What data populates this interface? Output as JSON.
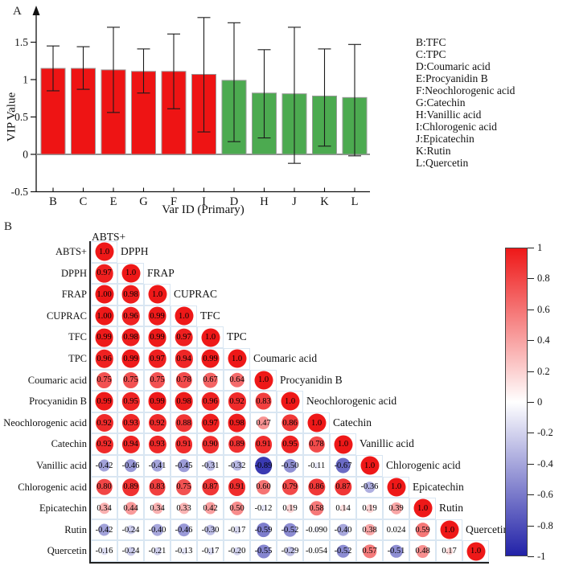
{
  "panels": {
    "a_label": "A",
    "b_label": "B"
  },
  "chart_data": [
    {
      "type": "bar",
      "panel": "A",
      "xlabel": "Var ID (Primary)",
      "ylabel": "VIP Value",
      "ylim": [
        -0.5,
        1.9
      ],
      "yticks": [
        "-0.5",
        "0",
        "0.5",
        "1",
        "1.5"
      ],
      "grid": false,
      "categories": [
        "B",
        "C",
        "E",
        "G",
        "F",
        "I",
        "D",
        "H",
        "J",
        "K",
        "L"
      ],
      "values": [
        1.15,
        1.15,
        1.13,
        1.11,
        1.11,
        1.07,
        0.99,
        0.82,
        0.81,
        0.78,
        0.76
      ],
      "err_low": [
        0.85,
        0.87,
        0.56,
        0.82,
        0.61,
        0.3,
        0.17,
        0.22,
        -0.12,
        0.11,
        -0.02
      ],
      "err_high": [
        1.45,
        1.44,
        1.7,
        1.41,
        1.61,
        1.83,
        1.76,
        1.4,
        1.7,
        1.41,
        1.47
      ],
      "color_rule": "red if VIP > 1 else green",
      "colors": {
        "red": "#ee1414",
        "green": "#4caa50",
        "baseline_gray": "#8f8f8f"
      },
      "legend": [
        "B:TFC",
        "C:TPC",
        "D:Coumaric acid",
        "E:Procyanidin B",
        "F:Neochlorogenic acid",
        "G:Catechin",
        "H:Vanillic acid",
        "I:Chlorogenic acid",
        "J:Epicatechin",
        "K:Rutin",
        "L:Quercetin"
      ]
    },
    {
      "type": "heatmap",
      "panel": "B",
      "subtype": "correlation-matrix-lower-triangle",
      "labels": [
        "ABTS+",
        "DPPH",
        "FRAP",
        "CUPRAC",
        "TFC",
        "TPC",
        "Coumaric acid",
        "Procyanidin B",
        "Neochlorogenic acid",
        "Catechin",
        "Vanillic acid",
        "Chlorogenic acid",
        "Epicatechin",
        "Rutin",
        "Quercetin"
      ],
      "matrix_display": [
        [
          "1.0"
        ],
        [
          "0.97",
          "1.0"
        ],
        [
          "1.00",
          "0.98",
          "1.0"
        ],
        [
          "1.00",
          "0.96",
          "0.99",
          "1.0"
        ],
        [
          "0.99",
          "0.98",
          "0.99",
          "0.97",
          "1.0"
        ],
        [
          "0.96",
          "0.99",
          "0.97",
          "0.94",
          "0.99",
          "1.0"
        ],
        [
          "0.75",
          "0.75",
          "0.75",
          "0.78",
          "0.67",
          "0.64",
          "1.0"
        ],
        [
          "0.99",
          "0.95",
          "0.99",
          "0.98",
          "0.96",
          "0.92",
          "0.83",
          "1.0"
        ],
        [
          "0.92",
          "0.93",
          "0.92",
          "0.88",
          "0.97",
          "0.98",
          "0.47",
          "0.86",
          "1.0"
        ],
        [
          "0.92",
          "0.94",
          "0.93",
          "0.91",
          "0.90",
          "0.89",
          "0.91",
          "0.95",
          "0.78",
          "1.0"
        ],
        [
          "-0.42",
          "-0.46",
          "-0.41",
          "-0.45",
          "-0.31",
          "-0.32",
          "-0.89",
          "-0.50",
          "-0.11",
          "-0.67",
          "1.0"
        ],
        [
          "0.80",
          "0.89",
          "0.83",
          "0.75",
          "0.87",
          "0.91",
          "0.60",
          "0.79",
          "0.86",
          "0.87",
          "-0.36",
          "1.0"
        ],
        [
          "0.34",
          "0.44",
          "0.34",
          "0.33",
          "0.42",
          "0.50",
          "-0.12",
          "0.19",
          "0.58",
          "0.14",
          "0.19",
          "0.39",
          "1.0"
        ],
        [
          "-0.42",
          "-0.24",
          "-0.40",
          "-0.46",
          "-0.30",
          "-0.17",
          "-0.59",
          "-0.52",
          "-0.090",
          "-0.40",
          "0.38",
          "0.024",
          "0.59",
          "1.0"
        ],
        [
          "-0.16",
          "-0.24",
          "-0.21",
          "-0.13",
          "-0.17",
          "-0.20",
          "-0.55",
          "-0.29",
          "-0.054",
          "-0.52",
          "0.57",
          "-0.51",
          "0.48",
          "0.17",
          "1.0"
        ]
      ],
      "colorbar": {
        "min": -1,
        "max": 1,
        "ticks": [
          "1",
          "0.8",
          "0.6",
          "0.4",
          "0.2",
          "0",
          "-0.2",
          "-0.4",
          "-0.6",
          "-0.8",
          "-1"
        ],
        "top_color": "#ee1818",
        "mid_color": "#ffffff",
        "bottom_color": "#2222a8"
      }
    }
  ]
}
